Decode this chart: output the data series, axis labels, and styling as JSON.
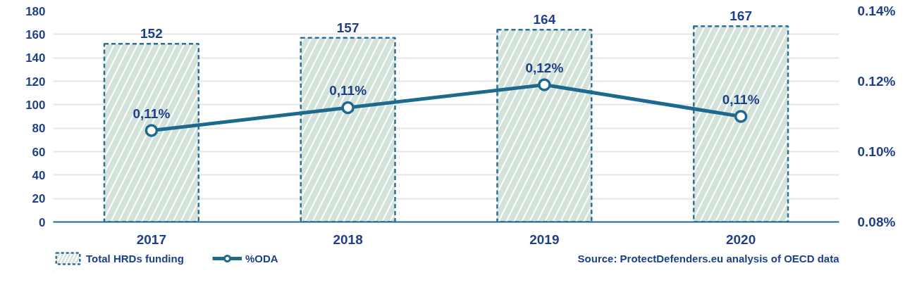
{
  "chart_data": {
    "type": "bar",
    "categories": [
      "2017",
      "2018",
      "2019",
      "2020"
    ],
    "series": [
      {
        "name": "Total HRDs funding",
        "color": "#d3e3da",
        "values": [
          152,
          157,
          164,
          167
        ]
      },
      {
        "name": "%ODA",
        "type": "line",
        "axis": "y2",
        "color": "#1d6a8e",
        "values": [
          0.106,
          0.1125,
          0.119,
          0.11
        ],
        "value_labels": [
          "0,11%",
          "0,11%",
          "0,12%",
          "0,11%"
        ]
      }
    ],
    "data_labels": true,
    "ylim": [
      0,
      180
    ],
    "yticks": [
      0,
      20,
      40,
      60,
      80,
      100,
      120,
      140,
      160,
      180
    ],
    "y2lim": [
      0.08,
      0.14
    ],
    "y2ticks": [
      {
        "value": 0.08,
        "label": "0.08%"
      },
      {
        "value": 0.1,
        "label": "0.10%"
      },
      {
        "value": 0.12,
        "label": "0.12%"
      },
      {
        "value": 0.14,
        "label": "0.14%"
      }
    ],
    "grid": "y",
    "legend": "bottom left",
    "marker": "circle",
    "line_style": "solid",
    "annotations": [
      "Source: ProtectDefenders.eu analysis of OECD data"
    ]
  }
}
